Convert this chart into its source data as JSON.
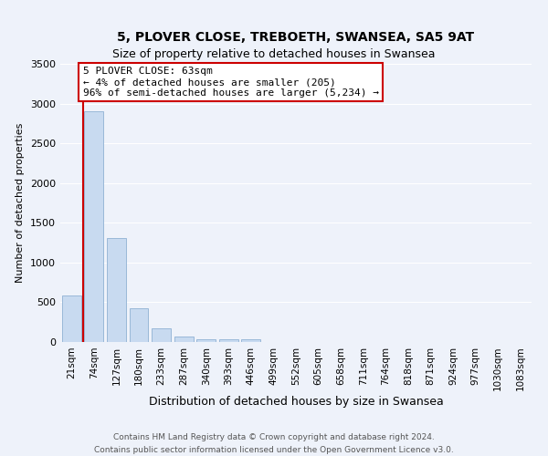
{
  "title": "5, PLOVER CLOSE, TREBOETH, SWANSEA, SA5 9AT",
  "subtitle": "Size of property relative to detached houses in Swansea",
  "xlabel": "Distribution of detached houses by size in Swansea",
  "ylabel": "Number of detached properties",
  "bar_labels": [
    "21sqm",
    "74sqm",
    "127sqm",
    "180sqm",
    "233sqm",
    "287sqm",
    "340sqm",
    "393sqm",
    "446sqm",
    "499sqm",
    "552sqm",
    "605sqm",
    "658sqm",
    "711sqm",
    "764sqm",
    "818sqm",
    "871sqm",
    "924sqm",
    "977sqm",
    "1030sqm",
    "1083sqm"
  ],
  "bar_heights": [
    580,
    2900,
    1310,
    420,
    170,
    65,
    40,
    30,
    30,
    0,
    0,
    0,
    0,
    0,
    0,
    0,
    0,
    0,
    0,
    0,
    0
  ],
  "bar_color": "#c8daf0",
  "bar_edge_color": "#9ab8d8",
  "highlight_color": "#cc0000",
  "annotation_title": "5 PLOVER CLOSE: 63sqm",
  "annotation_line1": "← 4% of detached houses are smaller (205)",
  "annotation_line2": "96% of semi-detached houses are larger (5,234) →",
  "annotation_box_color": "#ffffff",
  "annotation_box_edge": "#cc0000",
  "ylim": [
    0,
    3500
  ],
  "yticks": [
    0,
    500,
    1000,
    1500,
    2000,
    2500,
    3000,
    3500
  ],
  "footer_line1": "Contains HM Land Registry data © Crown copyright and database right 2024.",
  "footer_line2": "Contains public sector information licensed under the Open Government Licence v3.0.",
  "bg_color": "#eef2fa",
  "grid_color": "#ffffff",
  "title_fontsize": 10,
  "subtitle_fontsize": 9,
  "ylabel_fontsize": 8,
  "xlabel_fontsize": 9,
  "tick_fontsize": 7.5,
  "annot_fontsize": 8,
  "footer_fontsize": 6.5
}
